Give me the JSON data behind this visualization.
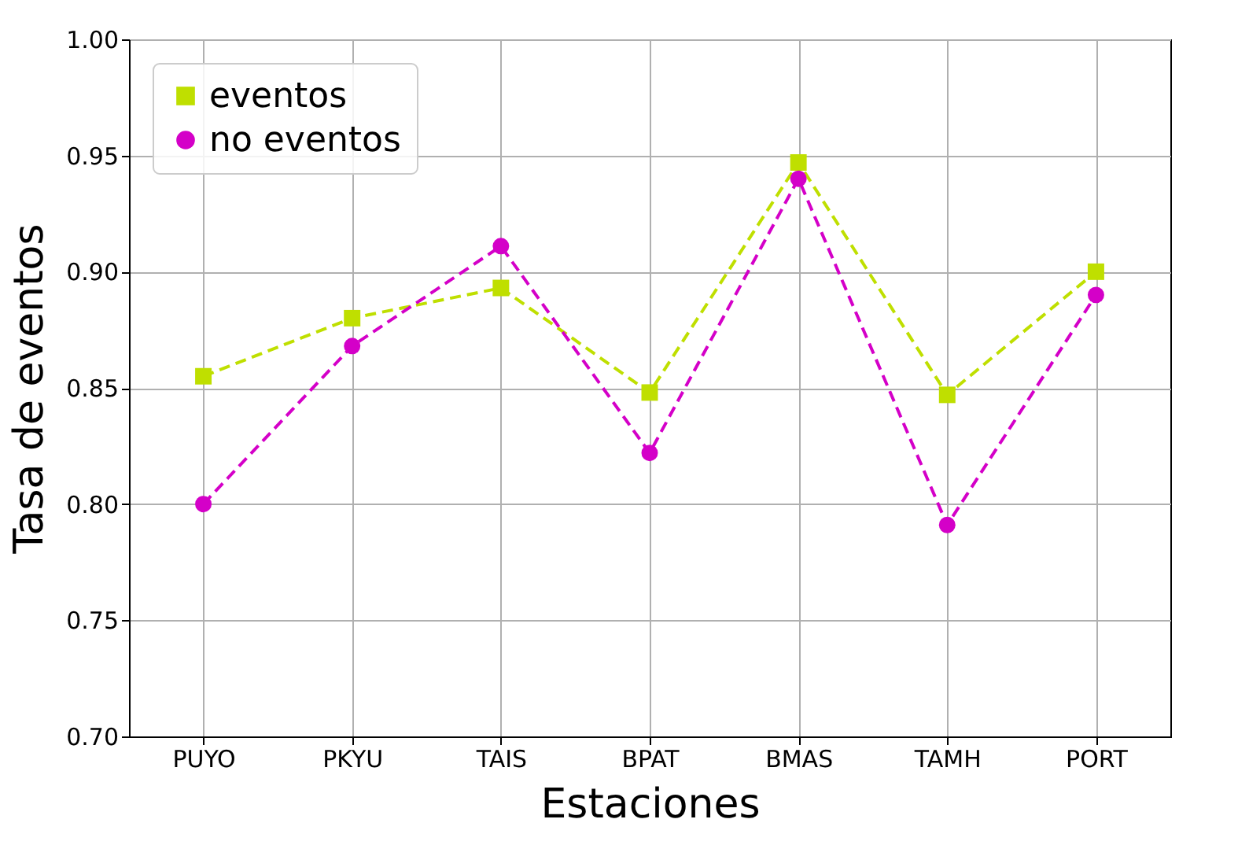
{
  "chart_data": {
    "type": "line",
    "xlabel": "Estaciones",
    "ylabel": "Tasa de eventos",
    "categories": [
      "PUYO",
      "PKYU",
      "TAIS",
      "BPAT",
      "BMAS",
      "TAMH",
      "PORT"
    ],
    "series": [
      {
        "name": "eventos",
        "color": "#bfdf00",
        "marker": "square",
        "values": [
          0.855,
          0.88,
          0.893,
          0.848,
          0.947,
          0.847,
          0.9
        ]
      },
      {
        "name": "no eventos",
        "color": "#d400c8",
        "marker": "circle",
        "values": [
          0.8,
          0.868,
          0.911,
          0.822,
          0.94,
          0.791,
          0.89
        ]
      }
    ],
    "ylim": [
      0.7,
      1.0
    ],
    "yticks": [
      {
        "value": 0.7,
        "label": "0.70"
      },
      0.75,
      {
        "value": 0.8,
        "label": "0.80"
      },
      0.85,
      {
        "value": 0.9,
        "label": "0.90"
      },
      0.95,
      {
        "value": 1.0,
        "label": "1.00"
      }
    ],
    "grid": true,
    "legend": "top left",
    "line_style": "dashed"
  }
}
